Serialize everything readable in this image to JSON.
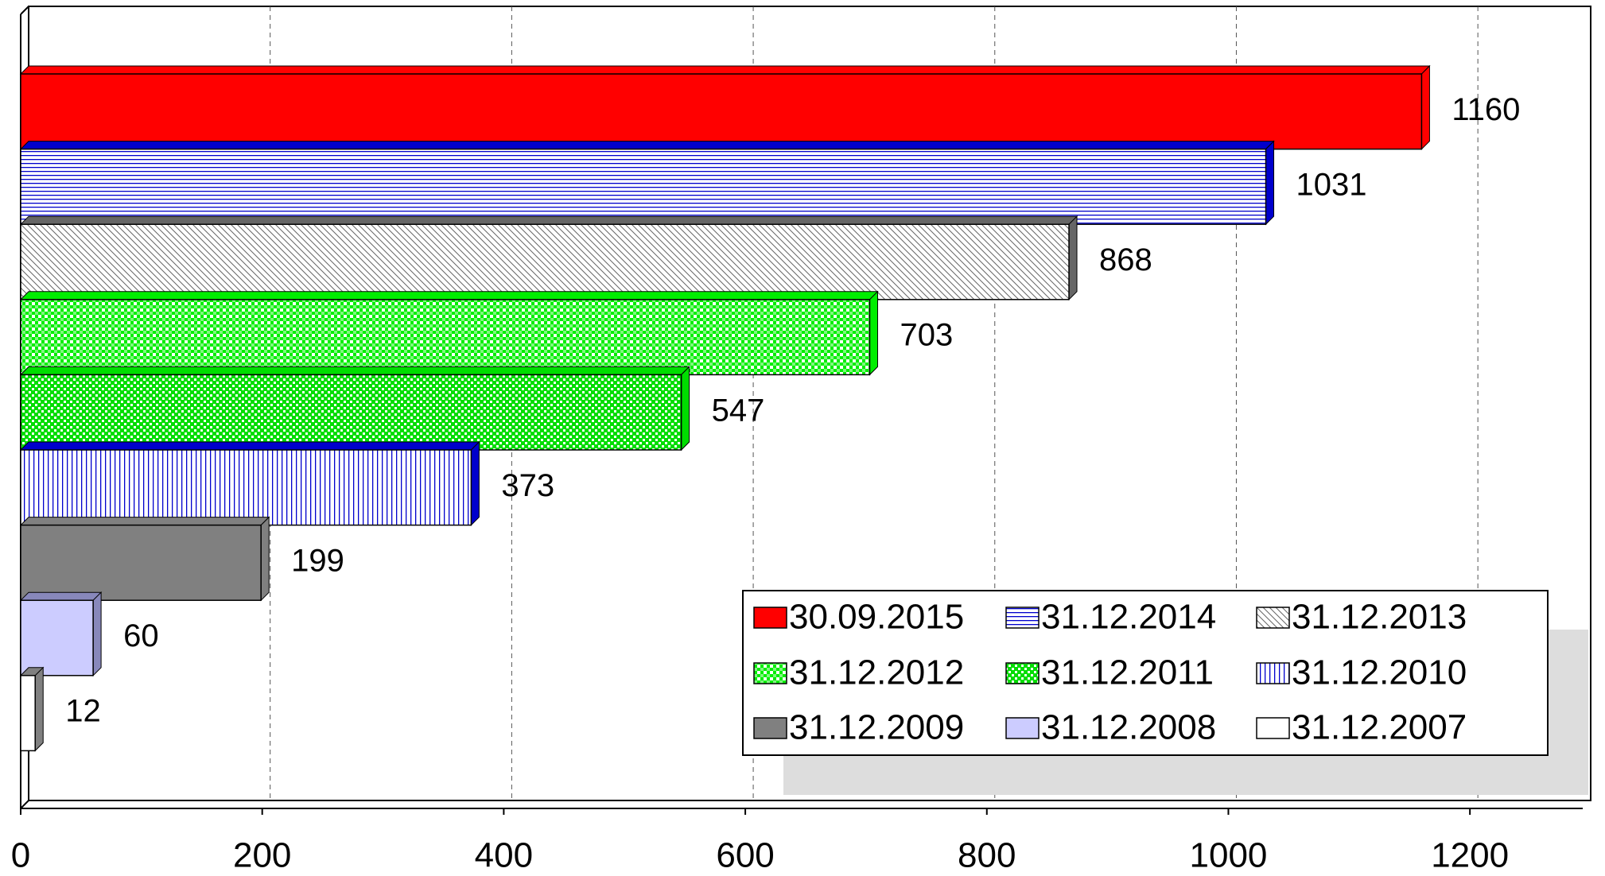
{
  "chart_data": {
    "type": "bar",
    "orientation": "horizontal",
    "categories": [
      "30.09.2015",
      "31.12.2014",
      "31.12.2013",
      "31.12.2012",
      "31.12.2011",
      "31.12.2010",
      "31.12.2009",
      "31.12.2008",
      "31.12.2007"
    ],
    "values": [
      1160,
      1031,
      868,
      703,
      547,
      373,
      199,
      60,
      12
    ],
    "colors": [
      "#ff0000",
      "#0000cc",
      "#666666",
      "#00ee00",
      "#00dd00",
      "#0000cc",
      "#808080",
      "#ccccff",
      "#ffffff"
    ],
    "patterns": [
      "solid",
      "hlines",
      "diagonal",
      "dots",
      "check",
      "vlines",
      "solid",
      "solid",
      "solid"
    ],
    "xlim": [
      0,
      1300
    ],
    "xticks": [
      0,
      200,
      400,
      600,
      800,
      1000,
      1200
    ],
    "grid": true,
    "legend": "bottom-right"
  }
}
